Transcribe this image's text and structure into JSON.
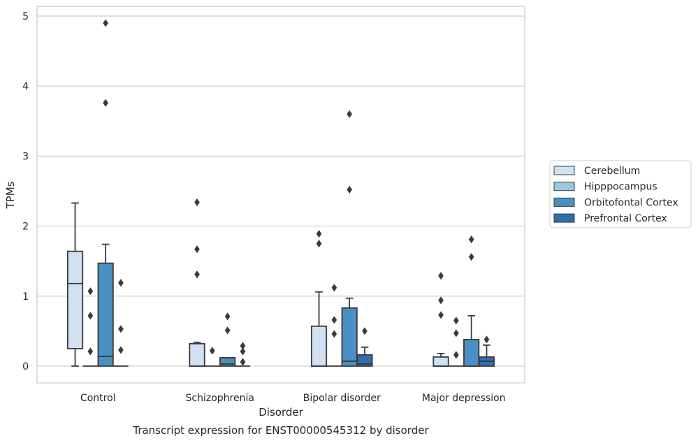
{
  "chart_data": {
    "type": "boxplot",
    "caption": "Transcript expression for ENST00000545312 by disorder",
    "xlabel": "Disorder",
    "ylabel": "TPMs",
    "ylim": [
      -0.24,
      5.14
    ],
    "yticks": [
      0,
      1,
      2,
      3,
      4,
      5
    ],
    "grid": true,
    "legend_position": "right",
    "categories": [
      "Control",
      "Schizophrenia",
      "Bipolar disorder",
      "Major depression"
    ],
    "series": [
      {
        "name": "Cerebellum",
        "color": "#d0e1f2",
        "boxes": [
          {
            "min": 0,
            "q1": 0.25,
            "median": 1.18,
            "q3": 1.64,
            "max": 2.33,
            "outliers": []
          },
          {
            "min": 0,
            "q1": 0,
            "median": 0,
            "q3": 0.32,
            "max": 0.34,
            "outliers": [
              1.31,
              1.67,
              2.34
            ]
          },
          {
            "min": 0,
            "q1": 0,
            "median": 0,
            "q3": 0.57,
            "max": 1.06,
            "outliers": [
              1.75,
              1.89
            ]
          },
          {
            "min": 0,
            "q1": 0,
            "median": 0,
            "q3": 0.13,
            "max": 0.18,
            "outliers": [
              0.73,
              0.94,
              1.29
            ]
          }
        ]
      },
      {
        "name": "Hipppocampus",
        "color": "#9ac8e0",
        "boxes": [
          {
            "min": 0,
            "q1": 0,
            "median": 0,
            "q3": 0,
            "max": 0,
            "outliers": [
              0.21,
              0.72,
              1.07
            ]
          },
          {
            "min": 0,
            "q1": 0,
            "median": 0,
            "q3": 0,
            "max": 0,
            "outliers": [
              0.22
            ]
          },
          {
            "min": 0,
            "q1": 0,
            "median": 0,
            "q3": 0,
            "max": 0,
            "outliers": [
              0.46,
              0.66,
              1.12
            ]
          },
          {
            "min": 0,
            "q1": 0,
            "median": 0,
            "q3": 0,
            "max": 0,
            "outliers": [
              0.16,
              0.47,
              0.65
            ]
          }
        ]
      },
      {
        "name": "Orbitofontal Cortex",
        "color": "#4a90c2",
        "boxes": [
          {
            "min": 0,
            "q1": 0,
            "median": 0.14,
            "q3": 1.47,
            "max": 1.74,
            "outliers": [
              3.76,
              4.9
            ]
          },
          {
            "min": 0,
            "q1": 0,
            "median": 0.03,
            "q3": 0.12,
            "max": 0.12,
            "outliers": [
              0.51,
              0.71
            ]
          },
          {
            "min": 0,
            "q1": 0,
            "median": 0.07,
            "q3": 0.83,
            "max": 0.97,
            "outliers": [
              2.52,
              3.6
            ]
          },
          {
            "min": 0,
            "q1": 0,
            "median": 0,
            "q3": 0.38,
            "max": 0.72,
            "outliers": [
              1.56,
              1.81
            ]
          }
        ]
      },
      {
        "name": "Prefrontal Cortex",
        "color": "#2e6faf",
        "boxes": [
          {
            "min": 0,
            "q1": 0,
            "median": 0,
            "q3": 0,
            "max": 0,
            "outliers": [
              0.23,
              0.53,
              1.19
            ]
          },
          {
            "min": 0,
            "q1": 0,
            "median": 0,
            "q3": 0,
            "max": 0,
            "outliers": [
              0.06,
              0.21,
              0.29
            ]
          },
          {
            "min": 0,
            "q1": 0,
            "median": 0.03,
            "q3": 0.16,
            "max": 0.27,
            "outliers": [
              0.5
            ]
          },
          {
            "min": 0,
            "q1": 0,
            "median": 0.07,
            "q3": 0.13,
            "max": 0.3,
            "outliers": [
              0.38
            ]
          }
        ]
      }
    ]
  },
  "colors": {
    "grid": "#cccccc",
    "axes_edge": "#cccccc",
    "box_edge": "#3a3a3a"
  }
}
